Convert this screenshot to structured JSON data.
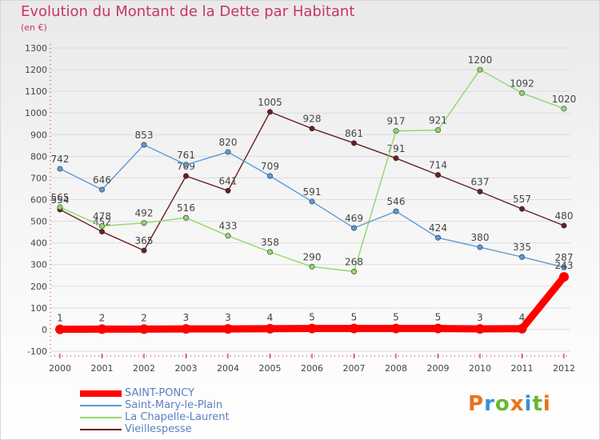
{
  "chart_data": {
    "type": "line",
    "title": "Evolution du Montant de la Dette par Habitant",
    "subtitle": "(en €)",
    "x": [
      "2000",
      "2001",
      "2002",
      "2003",
      "2004",
      "2005",
      "2006",
      "2007",
      "2008",
      "2009",
      "2010",
      "2011",
      "2012"
    ],
    "yticks": [
      "1300",
      "1200",
      "1100",
      "1000",
      "900",
      "800",
      "700",
      "600",
      "500",
      "400",
      "300",
      "200",
      "100",
      "0",
      "-100"
    ],
    "ylim": [
      -100,
      1300
    ],
    "grid": true,
    "legend_position": "bottom-left",
    "series": [
      {
        "name": "Vieillespesse",
        "color": "#6a1f1f",
        "values": [
          554,
          452,
          365,
          709,
          641,
          1005,
          928,
          861,
          791,
          714,
          637,
          557,
          480
        ],
        "labels": [
          "554",
          "452",
          "365",
          "709",
          "641",
          "1005",
          "928",
          "861",
          "791",
          "714",
          "637",
          "557",
          "480"
        ]
      },
      {
        "name": "La Chapelle-Laurent",
        "color": "#8fd86a",
        "values": [
          565,
          478,
          492,
          516,
          433,
          358,
          290,
          268,
          917,
          921,
          1200,
          1092,
          1020
        ],
        "labels": [
          "565",
          "478",
          "492",
          "516",
          "433",
          "358",
          "290",
          "268",
          "917",
          "921",
          "1200",
          "1092",
          "1020"
        ]
      },
      {
        "name": "Saint-Mary-le-Plain",
        "color": "#5b9ad8",
        "values": [
          742,
          646,
          853,
          761,
          820,
          709,
          591,
          469,
          546,
          424,
          380,
          335,
          287
        ],
        "labels": [
          "742",
          "646",
          "853",
          "761",
          "820",
          "709",
          "591",
          "469",
          "546",
          "424",
          "380",
          "335",
          "287"
        ]
      },
      {
        "name": "SAINT-PONCY",
        "color": "#ff0000",
        "values": [
          1,
          2,
          2,
          3,
          3,
          4,
          5,
          5,
          5,
          5,
          3,
          4,
          243
        ],
        "labels": [
          "1",
          "2",
          "2",
          "3",
          "3",
          "4",
          "5",
          "5",
          "5",
          "5",
          "3",
          "4",
          "243"
        ]
      }
    ],
    "legend": [
      {
        "name": "SAINT-PONCY",
        "color": "#ff0000",
        "thick": true
      },
      {
        "name": "Saint-Mary-le-Plain",
        "color": "#5b9ad8",
        "thick": false
      },
      {
        "name": "La Chapelle-Laurent",
        "color": "#8fd86a",
        "thick": false
      },
      {
        "name": "Vieillespesse",
        "color": "#6a1f1f",
        "thick": false
      }
    ]
  },
  "logo": {
    "text": "Proxiti",
    "colors": [
      "#e8731b",
      "#3a8fd6",
      "#66b832",
      "#e8731b",
      "#3a8fd6",
      "#66b832",
      "#e8731b"
    ]
  }
}
